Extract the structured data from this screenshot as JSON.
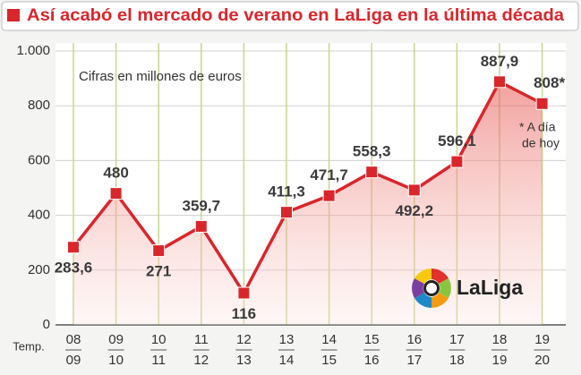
{
  "chart_data": {
    "type": "line",
    "title": "Así acabó el mercado de verano en LaLiga en la última década",
    "subtitle": "Cifras en millones de euros",
    "annotation": [
      "* A día",
      "de hoy"
    ],
    "x_label": "Temp.",
    "logo_text": "LaLiga",
    "categories": [
      [
        "08",
        "09"
      ],
      [
        "09",
        "10"
      ],
      [
        "10",
        "11"
      ],
      [
        "11",
        "12"
      ],
      [
        "12",
        "13"
      ],
      [
        "13",
        "14"
      ],
      [
        "14",
        "15"
      ],
      [
        "15",
        "16"
      ],
      [
        "16",
        "17"
      ],
      [
        "17",
        "18"
      ],
      [
        "18",
        "19"
      ],
      [
        "19",
        "20"
      ]
    ],
    "values": [
      283.6,
      480,
      271,
      359.7,
      116,
      411.3,
      471.7,
      558.3,
      492.2,
      596.1,
      887.9,
      808
    ],
    "value_labels": [
      "283,6",
      "480",
      "271",
      "359,7",
      "116",
      "411,3",
      "471,7",
      "558,3",
      "492,2",
      "596,1",
      "887,9",
      "808*"
    ],
    "color": "#d9262b",
    "ylim": [
      0,
      1000
    ],
    "yticks": [
      0,
      200,
      400,
      600,
      800,
      {
        "value": 1000,
        "label": "1.000"
      }
    ],
    "grid": true
  }
}
